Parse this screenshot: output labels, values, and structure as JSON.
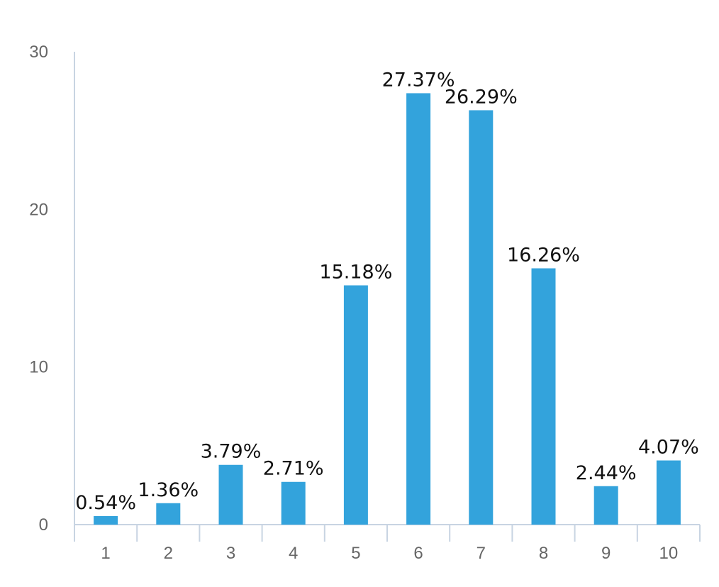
{
  "chart_data": {
    "type": "bar",
    "categories": [
      "1",
      "2",
      "3",
      "4",
      "5",
      "6",
      "7",
      "8",
      "9",
      "10"
    ],
    "values": [
      0.54,
      1.36,
      3.79,
      2.71,
      15.18,
      27.37,
      26.29,
      16.26,
      2.44,
      4.07
    ],
    "data_labels": [
      "0.54%",
      "1.36%",
      "3.79%",
      "2.71%",
      "15.18%",
      "27.37%",
      "26.29%",
      "16.26%",
      "2.44%",
      "4.07%"
    ],
    "title": "",
    "xlabel": "",
    "ylabel": "",
    "ylim": [
      0,
      30
    ],
    "yticks": [
      0,
      10,
      20,
      30
    ],
    "grid": false,
    "legend": "none",
    "bar_color": "#33a3dc"
  }
}
